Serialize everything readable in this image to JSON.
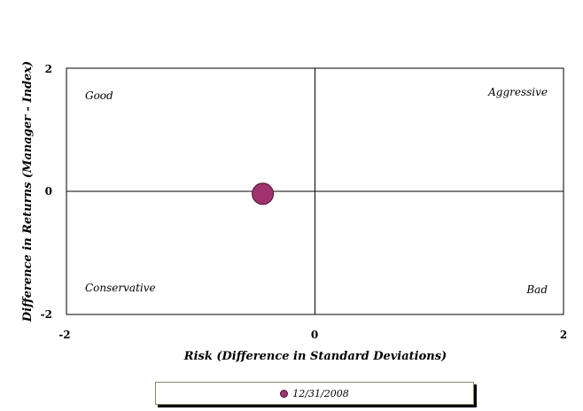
{
  "chart_data": {
    "type": "scatter",
    "xlabel": "Risk (Difference in Standard Deviations)",
    "ylabel": "Difference in Returns (Manager - Index)",
    "xlim": [
      -2,
      2
    ],
    "ylim": [
      -2,
      2
    ],
    "x_ticks": [
      "-2",
      "0",
      "2"
    ],
    "y_ticks": [
      "2",
      "0",
      "-2"
    ],
    "quadrant_labels": {
      "top_left": "Good",
      "top_right": "Aggressive",
      "bottom_left": "Conservative",
      "bottom_right": "Bad"
    },
    "series": [
      {
        "name": "12/31/2008",
        "points": [
          {
            "x": -0.42,
            "y": -0.04
          }
        ],
        "color": "#a0336f"
      }
    ],
    "grid": false,
    "legend_position": "bottom"
  }
}
